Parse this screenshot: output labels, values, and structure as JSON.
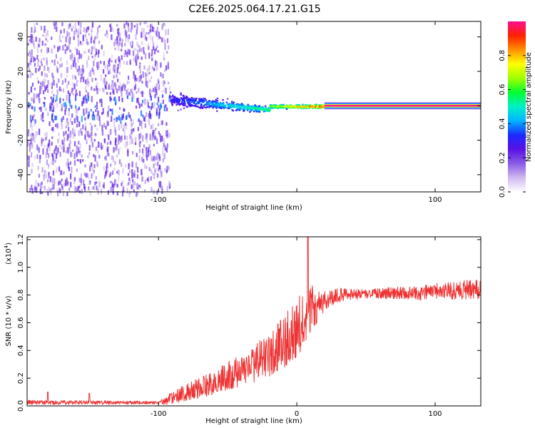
{
  "title": "C2E6.2025.064.17.21.G15",
  "colors": {
    "snr_line": "#ee3333",
    "axis": "#000000",
    "background": "#ffffff"
  },
  "colormap": [
    "#ffffff",
    "#d0b8f0",
    "#8a5ce6",
    "#5a10e6",
    "#1a2aff",
    "#00b4ff",
    "#00f0c8",
    "#00ff30",
    "#a0ff00",
    "#ffff00",
    "#ff9000",
    "#ff2000",
    "#ff1090"
  ],
  "chart_data": [
    {
      "type": "heatmap",
      "xlabel": "Height of straight line (km)",
      "ylabel": "Frequency (Hz)",
      "xlim": [
        -195,
        133
      ],
      "ylim": [
        -50,
        49
      ],
      "xticks": [
        -100,
        0,
        100
      ],
      "xtick_labels": [
        "-100",
        "",
        "100"
      ],
      "yticks": [
        -40,
        -20,
        0,
        20,
        40
      ],
      "ytick_labels": [
        "-40",
        "-20",
        "0",
        "20",
        "40"
      ],
      "colorbar": {
        "label": "Normalized spectral amplitude",
        "range": [
          0,
          1
        ],
        "ticks": [
          0.0,
          0.2,
          0.4,
          0.6,
          0.8
        ],
        "tick_labels": [
          "0.0",
          "0.2",
          "0.4",
          "0.6",
          "0.8"
        ]
      },
      "regions": [
        {
          "x": [
            -195,
            -92
          ],
          "freq_spread": [
            -50,
            49
          ],
          "level": [
            0.05,
            0.25
          ]
        },
        {
          "x": [
            -92,
            -20
          ],
          "freq_center": [
            4,
            -2
          ],
          "freq_width": [
            8,
            3
          ],
          "level": [
            0.3,
            0.6
          ]
        },
        {
          "x": [
            -20,
            20
          ],
          "freq_center": [
            0,
            0
          ],
          "freq_width": [
            2,
            2
          ],
          "level": [
            0.7,
            0.95
          ]
        },
        {
          "x": [
            20,
            133
          ],
          "freq_center": [
            0,
            0
          ],
          "freq_width": [
            1,
            1
          ],
          "level": [
            0.95,
            1.0
          ]
        }
      ]
    },
    {
      "type": "line",
      "xlabel": "Height of straight line (km)",
      "ylabel": "SNR (10 * v/v)",
      "scale_label": "(x10",
      "scale_exponent": "4",
      "xlim": [
        -195,
        133
      ],
      "ylim": [
        0,
        1.22
      ],
      "xticks": [
        -100,
        0,
        100
      ],
      "xtick_labels": [
        "-100",
        "0",
        "100"
      ],
      "yticks": [
        0.0,
        0.2,
        0.4,
        0.6,
        0.8,
        1.0,
        1.2
      ],
      "ytick_labels": [
        "0.0",
        "0.2",
        "0.4",
        "0.6",
        "0.8",
        "1.0",
        "1.2"
      ],
      "trend": {
        "x": [
          -195,
          -150,
          -100,
          -90,
          -80,
          -60,
          -40,
          -20,
          -10,
          0,
          10,
          20,
          30,
          50,
          70,
          90,
          110,
          133
        ],
        "y": [
          0.02,
          0.02,
          0.02,
          0.04,
          0.08,
          0.14,
          0.22,
          0.32,
          0.4,
          0.5,
          0.62,
          0.74,
          0.78,
          0.8,
          0.8,
          0.8,
          0.81,
          0.82
        ]
      },
      "noise": {
        "x": [
          -195,
          -100,
          -92,
          -60,
          -20,
          0,
          10,
          20,
          50,
          133
        ],
        "y": [
          0.015,
          0.01,
          0.04,
          0.08,
          0.14,
          0.2,
          0.18,
          0.06,
          0.03,
          0.07
        ]
      },
      "spikes": [
        {
          "x": -180,
          "y": 0.1
        },
        {
          "x": -150,
          "y": 0.09
        },
        {
          "x": 8,
          "y": 1.22
        }
      ]
    }
  ]
}
